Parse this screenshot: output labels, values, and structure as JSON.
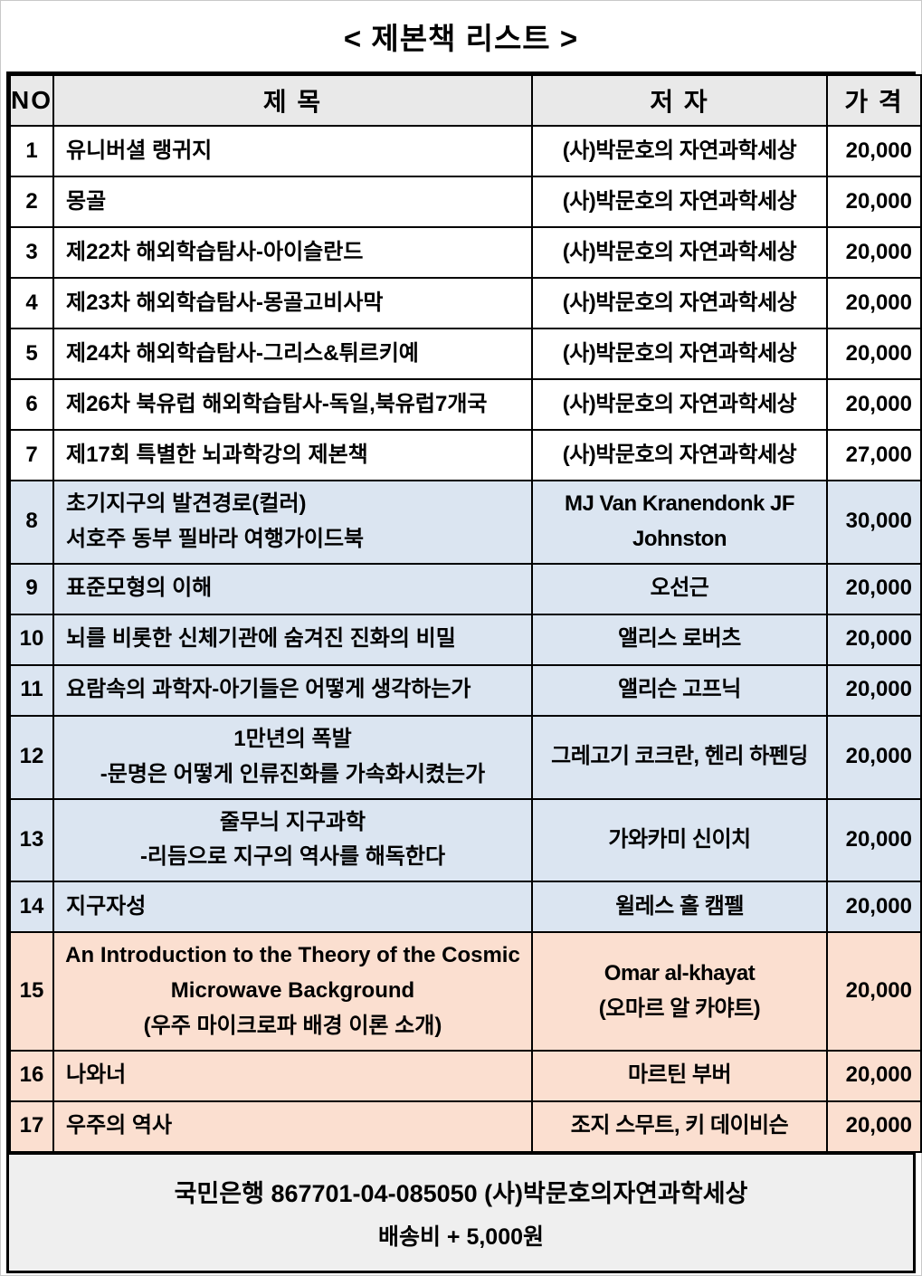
{
  "title": "< 제본책 리스트 >",
  "colors": {
    "row-blue": "#dbe5f1",
    "row-peach": "#fbdfd0",
    "header-bg": "#e9e9e9",
    "footer-bg": "#efefef",
    "border": "#000000"
  },
  "table": {
    "headers": {
      "no": "NO",
      "title": "제 목",
      "author": "저 자",
      "price": "가 격"
    },
    "rows": [
      {
        "no": "1",
        "title": "유니버셜 랭귀지",
        "align": "left",
        "author": "(사)박문호의 자연과학세상",
        "price": "20,000",
        "section": "white"
      },
      {
        "no": "2",
        "title": "몽골",
        "align": "left",
        "author": "(사)박문호의 자연과학세상",
        "price": "20,000",
        "section": "white"
      },
      {
        "no": "3",
        "title": "제22차 해외학습탐사-아이슬란드",
        "align": "left",
        "author": "(사)박문호의 자연과학세상",
        "price": "20,000",
        "section": "white"
      },
      {
        "no": "4",
        "title": "제23차 해외학습탐사-몽골고비사막",
        "align": "left",
        "author": "(사)박문호의 자연과학세상",
        "price": "20,000",
        "section": "white"
      },
      {
        "no": "5",
        "title": "제24차 해외학습탐사-그리스&튀르키예",
        "align": "left",
        "author": "(사)박문호의 자연과학세상",
        "price": "20,000",
        "section": "white"
      },
      {
        "no": "6",
        "title": "제26차 북유럽 해외학습탐사-독일,북유럽7개국",
        "align": "left",
        "author": "(사)박문호의 자연과학세상",
        "price": "20,000",
        "section": "white"
      },
      {
        "no": "7",
        "title": "제17회 특별한 뇌과학강의 제본책",
        "align": "left",
        "author": "(사)박문호의 자연과학세상",
        "price": "27,000",
        "section": "white"
      },
      {
        "no": "8",
        "title": [
          "초기지구의 발견경로(컬러)",
          "서호주 동부 필바라 여행가이드북"
        ],
        "align": "left",
        "author": [
          "MJ Van Kranendonk JF",
          "Johnston"
        ],
        "price": "30,000",
        "section": "blue"
      },
      {
        "no": "9",
        "title": "표준모형의 이해",
        "align": "left",
        "author": "오선근",
        "price": "20,000",
        "section": "blue"
      },
      {
        "no": "10",
        "title": "뇌를 비롯한 신체기관에 숨겨진 진화의 비밀",
        "align": "left",
        "author": "앨리스 로버츠",
        "price": "20,000",
        "section": "blue"
      },
      {
        "no": "11",
        "title": "요람속의 과학자-아기들은 어떻게 생각하는가",
        "align": "left",
        "author": "앨리슨 고프닉",
        "price": "20,000",
        "section": "blue"
      },
      {
        "no": "12",
        "title": [
          "1만년의 폭발",
          "-문명은 어떻게 인류진화를 가속화시켰는가"
        ],
        "align": "center",
        "author": "그레고기 코크란, 헨리 하펜딩",
        "price": "20,000",
        "section": "blue"
      },
      {
        "no": "13",
        "title": [
          "줄무늬 지구과학",
          "-리듬으로 지구의 역사를 해독한다"
        ],
        "align": "center",
        "author": "가와카미 신이치",
        "price": "20,000",
        "section": "blue"
      },
      {
        "no": "14",
        "title": "지구자성",
        "align": "left",
        "author": "윌레스 홀 캠펠",
        "price": "20,000",
        "section": "blue"
      },
      {
        "no": "15",
        "title": [
          "An Introduction to the Theory of the Cosmic Microwave Background",
          "(우주 마이크로파 배경 이론 소개)"
        ],
        "align": "center",
        "author": [
          "Omar al-khayat",
          "(오마르 알 카야트)"
        ],
        "price": "20,000",
        "section": "peach"
      },
      {
        "no": "16",
        "title": "나와너",
        "align": "left",
        "author": "마르틴 부버",
        "price": "20,000",
        "section": "peach"
      },
      {
        "no": "17",
        "title": "우주의 역사",
        "align": "left",
        "author": "조지 스무트, 키 데이비슨",
        "price": "20,000",
        "section": "peach"
      }
    ]
  },
  "footer": {
    "bank_line": "국민은행  867701-04-085050  (사)박문호의자연과학세상",
    "shipping_line": "배송비 + 5,000원"
  }
}
